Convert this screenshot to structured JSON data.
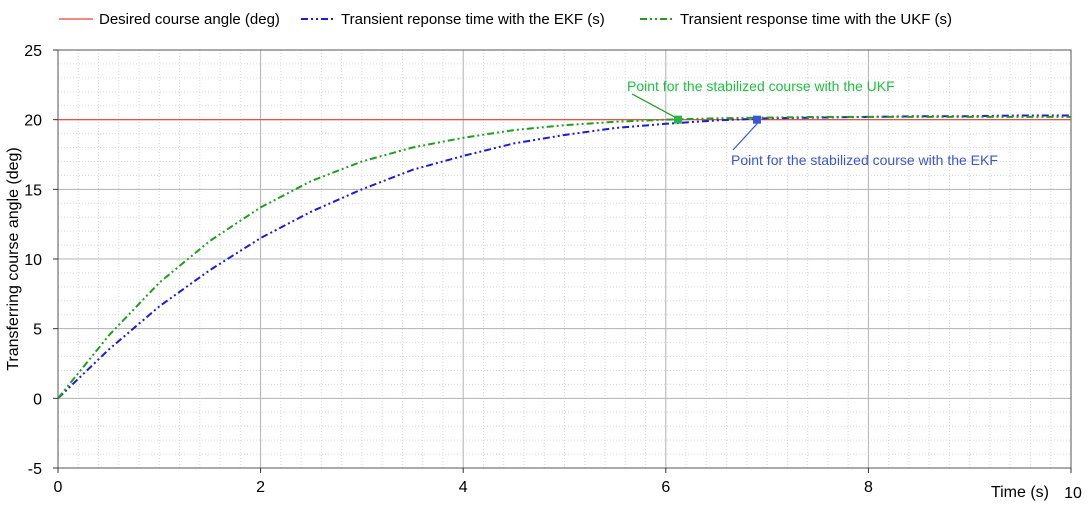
{
  "chart_data": {
    "type": "line",
    "xlabel": "Time (s)",
    "ylabel": "Transferring course angle (deg)",
    "xlim": [
      0,
      10
    ],
    "ylim": [
      -5,
      25
    ],
    "x_ticks": [
      "0",
      "2",
      "4",
      "6",
      "8",
      "10"
    ],
    "y_ticks": [
      "-5",
      "0",
      "5",
      "10",
      "15",
      "20",
      "25"
    ],
    "grid": true,
    "legend_position": "top",
    "series": [
      {
        "name": "Desired course angle (deg)",
        "color": "#e8413a",
        "style": "solid",
        "x": [
          0,
          10
        ],
        "y": [
          20,
          20
        ]
      },
      {
        "name": "Transient reponse time with the EKF (s)",
        "color": "#1c1cd6",
        "style": "dashdotdot",
        "x": [
          0,
          0.5,
          1,
          1.5,
          2,
          2.5,
          3,
          3.5,
          4,
          4.5,
          5,
          5.5,
          6,
          6.5,
          7,
          7.5,
          8,
          8.5,
          9,
          9.5,
          10
        ],
        "y": [
          0,
          3.5,
          6.6,
          9.2,
          11.5,
          13.4,
          15.0,
          16.4,
          17.4,
          18.3,
          18.9,
          19.4,
          19.7,
          19.95,
          20.1,
          20.15,
          20.2,
          20.25,
          20.25,
          20.3,
          20.3
        ]
      },
      {
        "name": "Transient response time with the UKF (s)",
        "color": "#1f9e1f",
        "style": "dashdotdot",
        "x": [
          0,
          0.5,
          1,
          1.5,
          2,
          2.5,
          3,
          3.5,
          4,
          4.5,
          5,
          5.5,
          6,
          6.5,
          7,
          7.5,
          8,
          8.5,
          9,
          9.5,
          10
        ],
        "y": [
          0,
          4.5,
          8.3,
          11.3,
          13.7,
          15.6,
          17.0,
          18.0,
          18.7,
          19.25,
          19.6,
          19.85,
          20.0,
          20.1,
          20.15,
          20.2,
          20.2,
          20.2,
          20.2,
          20.2,
          20.2
        ]
      }
    ],
    "annotations": [
      {
        "text": "Point for the stabilized course with the UKF",
        "color": "#1fbf3f",
        "point": [
          6.12,
          20.0
        ]
      },
      {
        "text": "Point for the stabilized course with the EKF",
        "color": "#3a55d6",
        "point": [
          6.9,
          20.0
        ]
      }
    ]
  }
}
